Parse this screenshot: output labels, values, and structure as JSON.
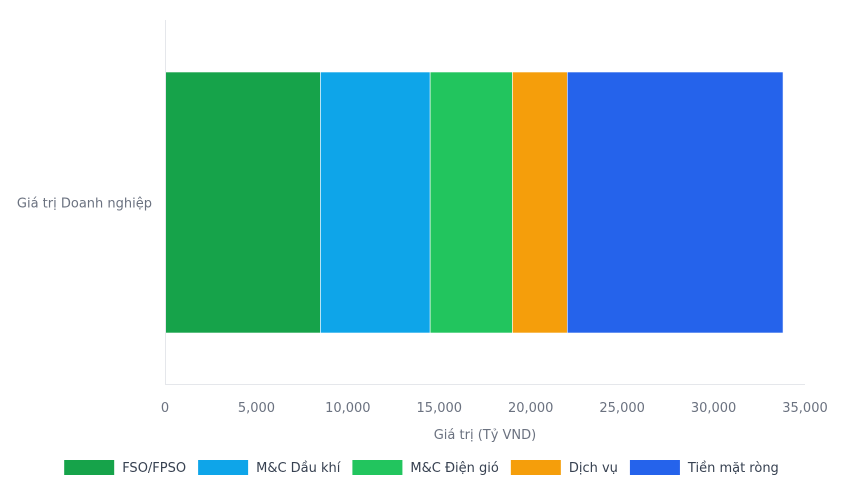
{
  "chart_data": {
    "type": "bar",
    "orientation": "horizontal",
    "stacked": true,
    "categories": [
      "Giá trị Doanh nghiệp"
    ],
    "series": [
      {
        "name": "FSO/FPSO",
        "values": [
          8500
        ],
        "color": "#16a34a"
      },
      {
        "name": "M&C Dầu khí",
        "values": [
          6000
        ],
        "color": "#0ea5e9"
      },
      {
        "name": "M&C Điện gió",
        "values": [
          4500
        ],
        "color": "#22c55e"
      },
      {
        "name": "Dịch vụ",
        "values": [
          3000
        ],
        "color": "#f59e0b"
      },
      {
        "name": "Tiền mặt ròng",
        "values": [
          11800
        ],
        "color": "#2563eb"
      }
    ],
    "xlabel": "Giá trị (Tỷ VND)",
    "ylabel": "",
    "xlim": [
      0,
      35000
    ],
    "xticks": [
      0,
      5000,
      10000,
      15000,
      20000,
      25000,
      30000,
      35000
    ],
    "xtick_labels": [
      "0",
      "5,000",
      "10,000",
      "15,000",
      "20,000",
      "25,000",
      "30,000",
      "35,000"
    ],
    "grid": false,
    "legend_position": "bottom"
  }
}
